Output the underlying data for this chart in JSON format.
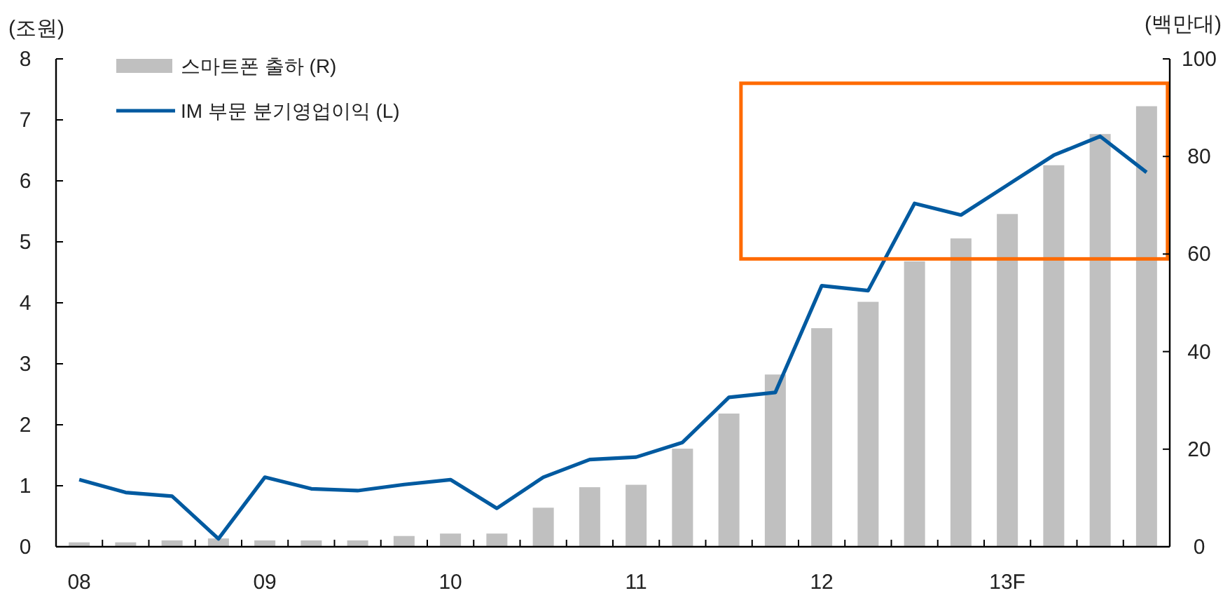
{
  "chart_data": {
    "type": "bar",
    "ylabel": "(조원)",
    "y2label": "(백만대)",
    "categories": [
      "08",
      null,
      null,
      null,
      "09",
      null,
      null,
      null,
      "10",
      null,
      null,
      null,
      "11",
      null,
      null,
      null,
      "12",
      null,
      null,
      null,
      "13F",
      null,
      null,
      null
    ],
    "series": [
      {
        "name": "스마트폰 출하 (R)",
        "axis": "y2",
        "color": "#c0c0c0",
        "values": [
          0.9,
          0.9,
          1.3,
          1.7,
          1.3,
          1.3,
          1.3,
          2.2,
          2.7,
          2.7,
          8.0,
          12.2,
          12.7,
          20.1,
          27.3,
          35.3,
          44.8,
          50.2,
          58.5,
          63.2,
          68.2,
          78.2,
          84.6,
          90.3
        ]
      },
      {
        "name": "IM 부문 분기영업이익 (L)",
        "type": "line",
        "color": "#005aa0",
        "values": [
          1.1,
          0.89,
          0.83,
          0.13,
          1.14,
          0.95,
          0.92,
          1.02,
          1.1,
          0.63,
          1.14,
          1.43,
          1.47,
          1.71,
          2.45,
          2.53,
          4.28,
          4.2,
          5.63,
          5.44,
          5.93,
          6.42,
          6.73,
          6.14
        ]
      }
    ],
    "ylim": [
      0,
      8
    ],
    "yticks": [
      0,
      1,
      2,
      3,
      4,
      5,
      6,
      7,
      8
    ],
    "y2lim": [
      0,
      100
    ],
    "y2ticks": [
      0,
      20,
      40,
      60,
      80,
      100
    ],
    "grid": false,
    "legend": "top left",
    "marker": "none",
    "line_style": "solid"
  }
}
